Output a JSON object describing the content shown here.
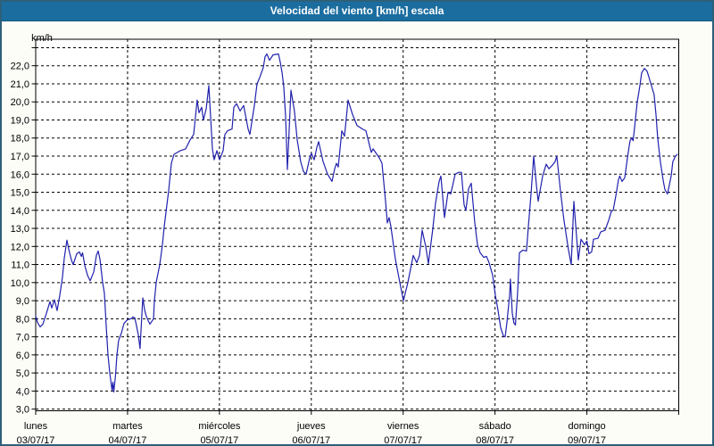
{
  "window": {
    "title": "Velocidad del viento [km/h] escala"
  },
  "colors": {
    "titlebar": "#1b6da0",
    "window_border": "#2d5f78",
    "background": "#fdfdf8",
    "plot_background": "#ffffff",
    "grid": "#000000",
    "text": "#000000",
    "line": "#2121ad"
  },
  "chart_data": {
    "type": "line",
    "title": "Velocidad del viento [km/h] escala",
    "xlabel": "",
    "ylabel": "km/h",
    "ylim": [
      3,
      23.5
    ],
    "xlim_days": [
      0,
      7
    ],
    "grid": "dashed black horizontal lines every 1 km/h (3.0 to 23.0) and vertical dashed lines at each day boundary",
    "legend_position": "none",
    "y_tick_labels": [
      "3,0",
      "4,0",
      "5,0",
      "6,0",
      "7,0",
      "8,0",
      "9,0",
      "10,0",
      "11,0",
      "12,0",
      "13,0",
      "14,0",
      "15,0",
      "16,0",
      "17,0",
      "18,0",
      "19,0",
      "20,0",
      "21,0",
      "22,0"
    ],
    "x_labels": [
      {
        "day": "lunes",
        "date": "03/07/17",
        "t": 0
      },
      {
        "day": "martes",
        "date": "04/07/17",
        "t": 1
      },
      {
        "day": "miércoles",
        "date": "05/07/17",
        "t": 2
      },
      {
        "day": "jueves",
        "date": "06/07/17",
        "t": 3
      },
      {
        "day": "viernes",
        "date": "07/07/17",
        "t": 4
      },
      {
        "day": "sábado",
        "date": "08/07/17",
        "t": 5
      },
      {
        "day": "domingo",
        "date": "09/07/17",
        "t": 6
      }
    ],
    "series": [
      {
        "name": "Velocidad del viento [km/h]",
        "color": "#2121ad",
        "points": [
          [
            0,
            8.15
          ],
          [
            0.019,
            7.8
          ],
          [
            0.049,
            7.55
          ],
          [
            0.078,
            7.7
          ],
          [
            0.117,
            8.3
          ],
          [
            0.155,
            8.95
          ],
          [
            0.175,
            8.6
          ],
          [
            0.204,
            9.05
          ],
          [
            0.233,
            8.45
          ],
          [
            0.262,
            9.3
          ],
          [
            0.291,
            10.3
          ],
          [
            0.311,
            11.35
          ],
          [
            0.34,
            12.35
          ],
          [
            0.359,
            11.85
          ],
          [
            0.389,
            11.25
          ],
          [
            0.408,
            11
          ],
          [
            0.447,
            11.6
          ],
          [
            0.476,
            11.7
          ],
          [
            0.496,
            11.45
          ],
          [
            0.51,
            11.65
          ],
          [
            0.534,
            10.95
          ],
          [
            0.564,
            10.4
          ],
          [
            0.593,
            10.1
          ],
          [
            0.632,
            10.6
          ],
          [
            0.661,
            11.5
          ],
          [
            0.68,
            11.75
          ],
          [
            0.7,
            11.3
          ],
          [
            0.729,
            10
          ],
          [
            0.748,
            9.4
          ],
          [
            0.768,
            7.6
          ],
          [
            0.787,
            6
          ],
          [
            0.806,
            5
          ],
          [
            0.831,
            4.05
          ],
          [
            0.84,
            4.5
          ],
          [
            0.85,
            3.95
          ],
          [
            0.87,
            4.9
          ],
          [
            0.884,
            6
          ],
          [
            0.903,
            6.8
          ],
          [
            0.933,
            7.2
          ],
          [
            0.962,
            7.75
          ],
          [
            1,
            7.95
          ],
          [
            1.039,
            8
          ],
          [
            1.059,
            8.1
          ],
          [
            1.078,
            8.05
          ],
          [
            1.098,
            7.6
          ],
          [
            1.117,
            7.1
          ],
          [
            1.136,
            6.35
          ],
          [
            1.151,
            7.8
          ],
          [
            1.166,
            9.15
          ],
          [
            1.185,
            8.5
          ],
          [
            1.2,
            8.2
          ],
          [
            1.224,
            7.9
          ],
          [
            1.244,
            7.7
          ],
          [
            1.282,
            8
          ],
          [
            1.292,
            9
          ],
          [
            1.312,
            10
          ],
          [
            1.35,
            11
          ],
          [
            1.38,
            12.1
          ],
          [
            1.399,
            13.1
          ],
          [
            1.448,
            15.1
          ],
          [
            1.477,
            16.6
          ],
          [
            1.506,
            17.1
          ],
          [
            1.574,
            17.3
          ],
          [
            1.632,
            17.4
          ],
          [
            1.681,
            17.9
          ],
          [
            1.72,
            18.2
          ],
          [
            1.758,
            20.1
          ],
          [
            1.778,
            19.4
          ],
          [
            1.807,
            19.7
          ],
          [
            1.826,
            19
          ],
          [
            1.856,
            19.6
          ],
          [
            1.885,
            20.9
          ],
          [
            1.924,
            17.4
          ],
          [
            1.943,
            16.8
          ],
          [
            1.972,
            17.3
          ],
          [
            2.001,
            16.8
          ],
          [
            2.04,
            17.3
          ],
          [
            2.06,
            18.2
          ],
          [
            2.089,
            18.4
          ],
          [
            2.137,
            18.5
          ],
          [
            2.157,
            19.7
          ],
          [
            2.186,
            19.9
          ],
          [
            2.225,
            19.5
          ],
          [
            2.264,
            19.8
          ],
          [
            2.312,
            18.5
          ],
          [
            2.332,
            18.2
          ],
          [
            2.38,
            19.8
          ],
          [
            2.409,
            21
          ],
          [
            2.439,
            21.35
          ],
          [
            2.477,
            21.9
          ],
          [
            2.497,
            22.5
          ],
          [
            2.516,
            22.65
          ],
          [
            2.545,
            22.3
          ],
          [
            2.584,
            22.6
          ],
          [
            2.643,
            22.65
          ],
          [
            2.662,
            22.2
          ],
          [
            2.682,
            21.6
          ],
          [
            2.701,
            20.8
          ],
          [
            2.72,
            19.2
          ],
          [
            2.74,
            16.25
          ],
          [
            2.779,
            20.65
          ],
          [
            2.817,
            19.5
          ],
          [
            2.847,
            17.9
          ],
          [
            2.885,
            16.7
          ],
          [
            2.915,
            16.15
          ],
          [
            2.944,
            16
          ],
          [
            2.983,
            16.9
          ],
          [
            3.002,
            17.15
          ],
          [
            3.031,
            16.8
          ],
          [
            3.061,
            17.5
          ],
          [
            3.08,
            17.8
          ],
          [
            3.128,
            16.7
          ],
          [
            3.177,
            16
          ],
          [
            3.226,
            15.6
          ],
          [
            3.255,
            16.3
          ],
          [
            3.274,
            16.6
          ],
          [
            3.294,
            16.4
          ],
          [
            3.332,
            18.4
          ],
          [
            3.362,
            18.1
          ],
          [
            3.4,
            20.1
          ],
          [
            3.449,
            19.3
          ],
          [
            3.498,
            18.7
          ],
          [
            3.556,
            18.5
          ],
          [
            3.595,
            18.4
          ],
          [
            3.624,
            17.8
          ],
          [
            3.653,
            17.2
          ],
          [
            3.672,
            17.4
          ],
          [
            3.74,
            16.9
          ],
          [
            3.77,
            16.6
          ],
          [
            3.808,
            14.5
          ],
          [
            3.828,
            13.3
          ],
          [
            3.847,
            13.6
          ],
          [
            3.867,
            13.1
          ],
          [
            3.915,
            11.3
          ],
          [
            3.964,
            10
          ],
          [
            4.003,
            9
          ],
          [
            4.051,
            10
          ],
          [
            4.11,
            11.5
          ],
          [
            4.148,
            11.1
          ],
          [
            4.178,
            11.5
          ],
          [
            4.207,
            12.9
          ],
          [
            4.246,
            12
          ],
          [
            4.275,
            11.05
          ],
          [
            4.323,
            13
          ],
          [
            4.353,
            14.4
          ],
          [
            4.391,
            15.6
          ],
          [
            4.411,
            15.9
          ],
          [
            4.45,
            13.6
          ],
          [
            4.489,
            15
          ],
          [
            4.518,
            14.9
          ],
          [
            4.566,
            16
          ],
          [
            4.605,
            16.1
          ],
          [
            4.634,
            16.1
          ],
          [
            4.663,
            14.3
          ],
          [
            4.683,
            14
          ],
          [
            4.712,
            15.2
          ],
          [
            4.741,
            15.5
          ],
          [
            4.78,
            13.3
          ],
          [
            4.809,
            12.1
          ],
          [
            4.838,
            11.65
          ],
          [
            4.877,
            11.4
          ],
          [
            4.906,
            11.45
          ],
          [
            4.935,
            11.1
          ],
          [
            4.974,
            10.4
          ],
          [
            5.003,
            9.3
          ],
          [
            5.032,
            8.5
          ],
          [
            5.062,
            7.5
          ],
          [
            5.091,
            7.05
          ],
          [
            5.11,
            7
          ],
          [
            5.13,
            7.8
          ],
          [
            5.159,
            9.3
          ],
          [
            5.168,
            10.2
          ],
          [
            5.188,
            8.3
          ],
          [
            5.207,
            7.75
          ],
          [
            5.222,
            7.65
          ],
          [
            5.246,
            9.5
          ],
          [
            5.266,
            11.65
          ],
          [
            5.304,
            11.8
          ],
          [
            5.343,
            11.75
          ],
          [
            5.363,
            13.1
          ],
          [
            5.392,
            14.9
          ],
          [
            5.421,
            17
          ],
          [
            5.45,
            15.4
          ],
          [
            5.47,
            14.5
          ],
          [
            5.518,
            15.9
          ],
          [
            5.557,
            16.55
          ],
          [
            5.586,
            16.3
          ],
          [
            5.625,
            16.5
          ],
          [
            5.654,
            16.7
          ],
          [
            5.673,
            17
          ],
          [
            5.712,
            15.1
          ],
          [
            5.751,
            13.45
          ],
          [
            5.8,
            11.8
          ],
          [
            5.829,
            11
          ],
          [
            5.858,
            14.5
          ],
          [
            5.907,
            11.25
          ],
          [
            5.936,
            12.4
          ],
          [
            5.975,
            12.1
          ],
          [
            6,
            12.3
          ],
          [
            6.023,
            11.6
          ],
          [
            6.052,
            11.7
          ],
          [
            6.072,
            12.4
          ],
          [
            6.121,
            12.45
          ],
          [
            6.15,
            12.8
          ],
          [
            6.198,
            12.9
          ],
          [
            6.237,
            13.45
          ],
          [
            6.266,
            13.95
          ],
          [
            6.286,
            14
          ],
          [
            6.315,
            14.8
          ],
          [
            6.344,
            15.7
          ],
          [
            6.358,
            15.9
          ],
          [
            6.383,
            15.6
          ],
          [
            6.412,
            15.8
          ],
          [
            6.441,
            16.9
          ],
          [
            6.47,
            17.85
          ],
          [
            6.489,
            18
          ],
          [
            6.504,
            17.85
          ],
          [
            6.528,
            19
          ],
          [
            6.548,
            20
          ],
          [
            6.577,
            20.9
          ],
          [
            6.596,
            21.6
          ],
          [
            6.626,
            21.85
          ],
          [
            6.655,
            21.7
          ],
          [
            6.674,
            21.4
          ],
          [
            6.703,
            20.9
          ],
          [
            6.732,
            20.4
          ],
          [
            6.752,
            19.3
          ],
          [
            6.771,
            18
          ],
          [
            6.8,
            16.7
          ],
          [
            6.829,
            15.7
          ],
          [
            6.849,
            15.15
          ],
          [
            6.878,
            14.9
          ],
          [
            6.917,
            15.9
          ],
          [
            6.936,
            16.7
          ],
          [
            6.965,
            17
          ],
          [
            6.985,
            17.1
          ]
        ]
      }
    ]
  }
}
